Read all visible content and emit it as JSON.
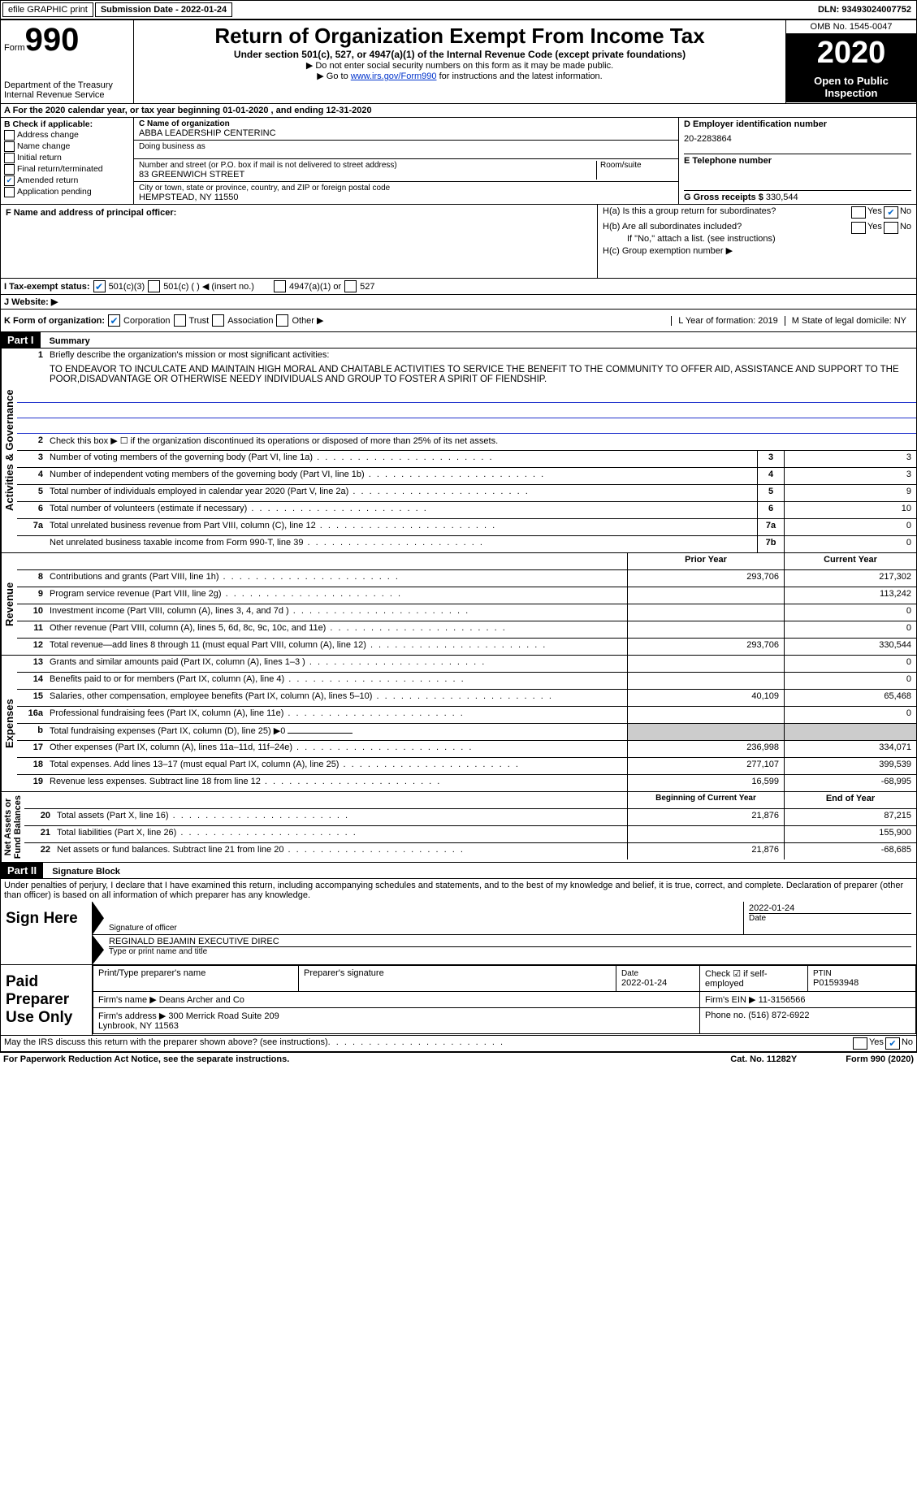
{
  "topbar": {
    "efile": "efile GRAPHIC print",
    "submission_label": "Submission Date - 2022-01-24",
    "dln": "DLN: 93493024007752"
  },
  "header": {
    "form_word": "Form",
    "form_num": "990",
    "dept": "Department of the Treasury\nInternal Revenue Service",
    "title": "Return of Organization Exempt From Income Tax",
    "subtitle": "Under section 501(c), 527, or 4947(a)(1) of the Internal Revenue Code (except private foundations)",
    "instr1": "▶ Do not enter social security numbers on this form as it may be made public.",
    "instr2_pre": "▶ Go to ",
    "instr2_link": "www.irs.gov/Form990",
    "instr2_post": " for instructions and the latest information.",
    "omb": "OMB No. 1545-0047",
    "year": "2020",
    "open1": "Open to Public",
    "open2": "Inspection"
  },
  "lineA": "A   For the 2020 calendar year, or tax year beginning 01-01-2020     , and ending 12-31-2020",
  "colB": {
    "hdr": "B Check if applicable:",
    "items": [
      "Address change",
      "Name change",
      "Initial return",
      "Final return/terminated",
      "Amended return",
      "Application pending"
    ],
    "checked_idx": 4
  },
  "colC": {
    "name_lbl": "C Name of organization",
    "name": "ABBA LEADERSHIP CENTERINC",
    "dba_lbl": "Doing business as",
    "addr_lbl": "Number and street (or P.O. box if mail is not delivered to street address)",
    "room_lbl": "Room/suite",
    "addr": "83 GREENWICH STREET",
    "city_lbl": "City or town, state or province, country, and ZIP or foreign postal code",
    "city": "HEMPSTEAD, NY  11550"
  },
  "colD": {
    "ein_lbl": "D Employer identification number",
    "ein": "20-2283864",
    "tel_lbl": "E Telephone number",
    "gross_lbl": "G Gross receipts $",
    "gross": "330,544"
  },
  "rowF": {
    "lbl": "F  Name and address of principal officer:"
  },
  "colH": {
    "ha": "H(a)  Is this a group return for subordinates?",
    "hb": "H(b)  Are all subordinates included?",
    "hb_note": "If \"No,\" attach a list. (see instructions)",
    "hc": "H(c)  Group exemption number ▶",
    "yes": "Yes",
    "no": "No"
  },
  "rowI": {
    "lbl": "I    Tax-exempt status:",
    "o1": "501(c)(3)",
    "o2": "501(c) (   ) ◀ (insert no.)",
    "o3": "4947(a)(1) or",
    "o4": "527"
  },
  "rowJ": {
    "lbl": "J    Website: ▶"
  },
  "rowK": {
    "lbl": "K Form of organization:",
    "o1": "Corporation",
    "o2": "Trust",
    "o3": "Association",
    "o4": "Other ▶",
    "L": "L Year of formation: 2019",
    "M": "M State of legal domicile: NY"
  },
  "part1": {
    "hdr": "Part I",
    "title": "Summary",
    "q1": "Briefly describe the organization's mission or most significant activities:",
    "mission": "TO ENDEAVOR TO INCULCATE AND MAINTAIN HIGH MORAL AND CHAITABLE ACTIVITIES TO SERVICE THE BENEFIT TO THE COMMUNITY TO OFFER AID, ASSISTANCE AND SUPPORT TO THE POOR,DISADVANTAGE OR OTHERWISE NEEDY INDIVIDUALS AND GROUP TO FOSTER A SPIRIT OF FIENDSHIP.",
    "q2": "Check this box ▶ ☐ if the organization discontinued its operations or disposed of more than 25% of its net assets.",
    "rows_gov": [
      {
        "n": "3",
        "t": "Number of voting members of the governing body (Part VI, line 1a)",
        "c": "3",
        "v": "3"
      },
      {
        "n": "4",
        "t": "Number of independent voting members of the governing body (Part VI, line 1b)",
        "c": "4",
        "v": "3"
      },
      {
        "n": "5",
        "t": "Total number of individuals employed in calendar year 2020 (Part V, line 2a)",
        "c": "5",
        "v": "9"
      },
      {
        "n": "6",
        "t": "Total number of volunteers (estimate if necessary)",
        "c": "6",
        "v": "10"
      },
      {
        "n": "7a",
        "t": "Total unrelated business revenue from Part VIII, column (C), line 12",
        "c": "7a",
        "v": "0"
      },
      {
        "n": "",
        "t": "Net unrelated business taxable income from Form 990-T, line 39",
        "c": "7b",
        "v": "0"
      }
    ],
    "hdr_prior": "Prior Year",
    "hdr_curr": "Current Year",
    "rows_rev": [
      {
        "n": "8",
        "t": "Contributions and grants (Part VIII, line 1h)",
        "p": "293,706",
        "c": "217,302"
      },
      {
        "n": "9",
        "t": "Program service revenue (Part VIII, line 2g)",
        "p": "",
        "c": "113,242"
      },
      {
        "n": "10",
        "t": "Investment income (Part VIII, column (A), lines 3, 4, and 7d )",
        "p": "",
        "c": "0"
      },
      {
        "n": "11",
        "t": "Other revenue (Part VIII, column (A), lines 5, 6d, 8c, 9c, 10c, and 11e)",
        "p": "",
        "c": "0"
      },
      {
        "n": "12",
        "t": "Total revenue—add lines 8 through 11 (must equal Part VIII, column (A), line 12)",
        "p": "293,706",
        "c": "330,544"
      }
    ],
    "rows_exp": [
      {
        "n": "13",
        "t": "Grants and similar amounts paid (Part IX, column (A), lines 1–3 )",
        "p": "",
        "c": "0"
      },
      {
        "n": "14",
        "t": "Benefits paid to or for members (Part IX, column (A), line 4)",
        "p": "",
        "c": "0"
      },
      {
        "n": "15",
        "t": "Salaries, other compensation, employee benefits (Part IX, column (A), lines 5–10)",
        "p": "40,109",
        "c": "65,468"
      },
      {
        "n": "16a",
        "t": "Professional fundraising fees (Part IX, column (A), line 11e)",
        "p": "",
        "c": "0"
      },
      {
        "n": "b",
        "t": "Total fundraising expenses (Part IX, column (D), line 25) ▶0",
        "p": "",
        "c": "",
        "noval": true
      },
      {
        "n": "17",
        "t": "Other expenses (Part IX, column (A), lines 11a–11d, 11f–24e)",
        "p": "236,998",
        "c": "334,071"
      },
      {
        "n": "18",
        "t": "Total expenses. Add lines 13–17 (must equal Part IX, column (A), line 25)",
        "p": "277,107",
        "c": "399,539"
      },
      {
        "n": "19",
        "t": "Revenue less expenses. Subtract line 18 from line 12",
        "p": "16,599",
        "c": "-68,995"
      }
    ],
    "hdr_beg": "Beginning of Current Year",
    "hdr_end": "End of Year",
    "rows_net": [
      {
        "n": "20",
        "t": "Total assets (Part X, line 16)",
        "p": "21,876",
        "c": "87,215"
      },
      {
        "n": "21",
        "t": "Total liabilities (Part X, line 26)",
        "p": "",
        "c": "155,900"
      },
      {
        "n": "22",
        "t": "Net assets or fund balances. Subtract line 21 from line 20",
        "p": "21,876",
        "c": "-68,685"
      }
    ],
    "sidelabels": {
      "gov": "Activities & Governance",
      "rev": "Revenue",
      "exp": "Expenses",
      "net": "Net Assets or\nFund Balances"
    }
  },
  "part2": {
    "hdr": "Part II",
    "title": "Signature Block",
    "decl": "Under penalties of perjury, I declare that I have examined this return, including accompanying schedules and statements, and to the best of my knowledge and belief, it is true, correct, and complete. Declaration of preparer (other than officer) is based on all information of which preparer has any knowledge.",
    "sign_here": "Sign Here",
    "sig_officer": "Signature of officer",
    "sig_date": "2022-01-24",
    "date_lbl": "Date",
    "name_title": "REGINALD BEJAMIN EXECUTIVE DIREC",
    "type_name": "Type or print name and title",
    "paid": "Paid Preparer Use Only",
    "p_name_lbl": "Print/Type preparer's name",
    "p_sig_lbl": "Preparer's signature",
    "p_date": "2022-01-24",
    "p_check": "Check ☑ if self-employed",
    "ptin_lbl": "PTIN",
    "ptin": "P01593948",
    "firm_name_lbl": "Firm's name   ▶",
    "firm_name": "Deans Archer and Co",
    "firm_ein_lbl": "Firm's EIN ▶",
    "firm_ein": "11-3156566",
    "firm_addr_lbl": "Firm's address ▶",
    "firm_addr": "300 Merrick Road Suite 209\nLynbrook, NY  11563",
    "phone_lbl": "Phone no.",
    "phone": "(516) 872-6922",
    "may_irs": "May the IRS discuss this return with the preparer shown above? (see instructions)",
    "yes": "Yes",
    "no": "No"
  },
  "footer": {
    "left": "For Paperwork Reduction Act Notice, see the separate instructions.",
    "mid": "Cat. No. 11282Y",
    "right": "Form 990 (2020)"
  }
}
